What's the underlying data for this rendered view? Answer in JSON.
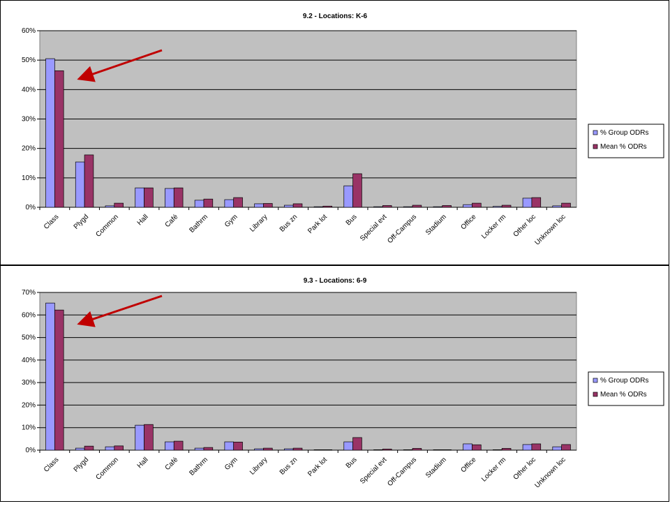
{
  "chart_data": [
    {
      "type": "bar",
      "title": "9.2 - Locations: K-6",
      "categories": [
        "Class",
        "Plygd",
        "Common",
        "Hall",
        "Café",
        "Bathrm",
        "Gym",
        "Library",
        "Bus zn",
        "Park lot",
        "Bus",
        "Special evt",
        "Off-Campus",
        "Stadium",
        "Office",
        "Locker rm",
        "Other loc",
        "Unknown loc"
      ],
      "series": [
        {
          "name": "% Group ODRs",
          "color": "#9999ff",
          "values": [
            50.5,
            15.4,
            0.5,
            6.6,
            6.4,
            2.4,
            2.6,
            1.2,
            0.7,
            0.2,
            7.3,
            0.2,
            0.2,
            0.2,
            0.9,
            0.3,
            3.1,
            0.5
          ]
        },
        {
          "name": "Mean % ODRs",
          "color": "#993366",
          "values": [
            46.4,
            17.8,
            1.4,
            6.6,
            6.6,
            2.8,
            3.3,
            1.3,
            1.2,
            0.4,
            11.4,
            0.6,
            0.7,
            0.6,
            1.4,
            0.7,
            3.3,
            1.4
          ]
        }
      ],
      "ylim": [
        0,
        60
      ],
      "yticks": [
        {
          "value": 0,
          "label": "0%"
        },
        {
          "value": 10,
          "label": "10%"
        },
        {
          "value": 20,
          "label": "20%"
        },
        {
          "value": 30,
          "label": "30%"
        },
        {
          "value": 40,
          "label": "40%"
        },
        {
          "value": 50,
          "label": "50%"
        },
        {
          "value": 60,
          "label": "60%"
        }
      ],
      "grid": true,
      "legend": "right"
    },
    {
      "type": "bar",
      "title": "9.3 - Locations: 6-9",
      "categories": [
        "Class",
        "Plygd",
        "Common",
        "Hall",
        "Café",
        "Bathrm",
        "Gym",
        "Library",
        "Bus zn",
        "Park lot",
        "Bus",
        "Special evt",
        "Off-Campus",
        "Stadium",
        "Office",
        "Locker rm",
        "Other loc",
        "Unknown loc"
      ],
      "series": [
        {
          "name": "% Group ODRs",
          "color": "#9999ff",
          "values": [
            65.3,
            0.9,
            1.5,
            11.1,
            3.7,
            0.9,
            3.7,
            0.6,
            0.6,
            0.2,
            3.7,
            0.2,
            0.2,
            0.2,
            2.8,
            0.2,
            2.5,
            1.5
          ]
        },
        {
          "name": "Mean % ODRs",
          "color": "#993366",
          "values": [
            62.2,
            1.8,
            1.9,
            11.4,
            4.0,
            1.2,
            3.6,
            0.9,
            0.9,
            0.2,
            5.6,
            0.5,
            0.8,
            0.2,
            2.4,
            0.8,
            2.8,
            2.5
          ]
        }
      ],
      "ylim": [
        0,
        70
      ],
      "yticks": [
        {
          "value": 0,
          "label": "0%"
        },
        {
          "value": 10,
          "label": "10%"
        },
        {
          "value": 20,
          "label": "20%"
        },
        {
          "value": 30,
          "label": "30%"
        },
        {
          "value": 40,
          "label": "40%"
        },
        {
          "value": 50,
          "label": "50%"
        },
        {
          "value": 60,
          "label": "60%"
        },
        {
          "value": 70,
          "label": "70%"
        }
      ],
      "grid": true,
      "legend": "right"
    }
  ]
}
